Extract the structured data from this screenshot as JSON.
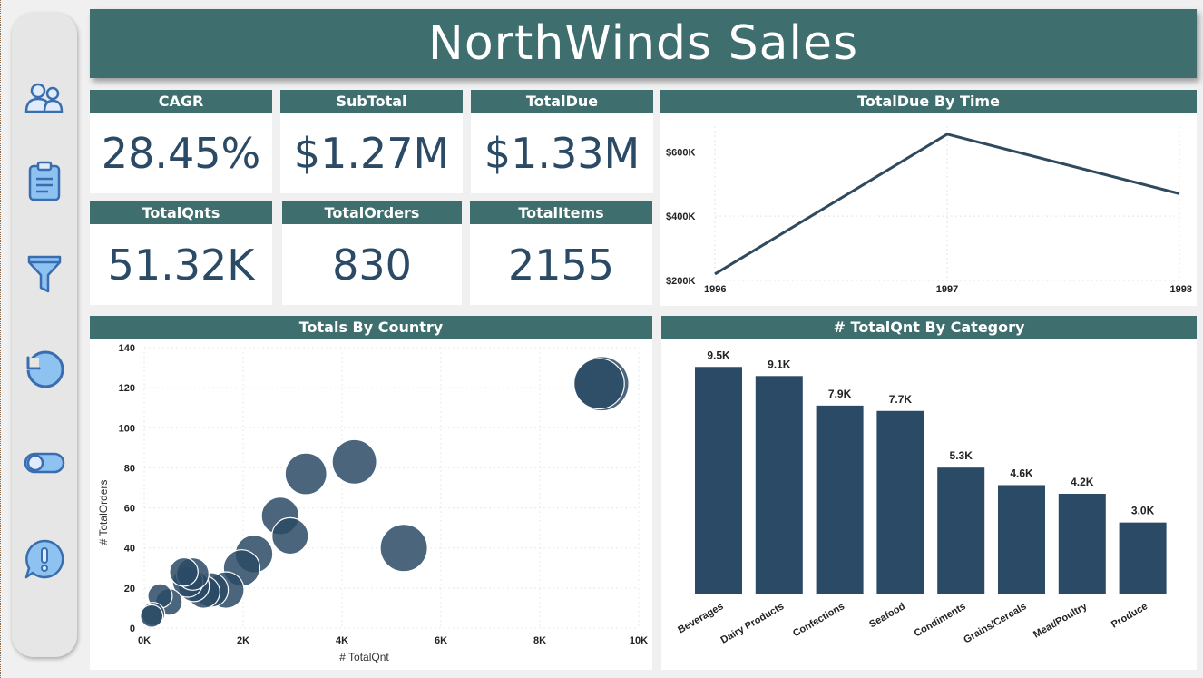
{
  "title": "NorthWinds Sales",
  "sidebar": {
    "icons": [
      "users-icon",
      "clipboard-icon",
      "filter-icon",
      "reset-icon",
      "toggle-icon",
      "feedback-icon"
    ]
  },
  "kpis": {
    "cagr": {
      "label": "CAGR",
      "value": "28.45%"
    },
    "subtotal": {
      "label": "SubTotal",
      "value": "$1.27M"
    },
    "totaldue": {
      "label": "TotalDue",
      "value": "$1.33M"
    },
    "totalqnts": {
      "label": "TotalQnts",
      "value": "51.32K"
    },
    "totalorders": {
      "label": "TotalOrders",
      "value": "830"
    },
    "totalitems": {
      "label": "TotalItems",
      "value": "2155"
    }
  },
  "colors": {
    "header": "#3e6e6e",
    "mark": "#2a4a65",
    "background": "#f0f0f0"
  },
  "chart_data": [
    {
      "type": "line",
      "title": "TotalDue By Time",
      "x": [
        "1996",
        "1997",
        "1998"
      ],
      "values": [
        220000,
        655000,
        470000
      ],
      "ylim": [
        200000,
        680000
      ],
      "yticks": [
        200000,
        400000,
        600000
      ],
      "ytick_labels": [
        "$200K",
        "$400K",
        "$600K"
      ],
      "grid": true
    },
    {
      "type": "scatter",
      "title": "Totals By Country",
      "xlabel": "# TotalQnt",
      "ylabel": "# TotalOrders",
      "xlim": [
        0,
        10000
      ],
      "ylim": [
        0,
        140
      ],
      "xticks": [
        0,
        2000,
        4000,
        6000,
        8000,
        10000
      ],
      "xtick_labels": [
        "0K",
        "2K",
        "4K",
        "6K",
        "8K",
        "10K"
      ],
      "yticks": [
        0,
        20,
        40,
        60,
        80,
        100,
        120,
        140
      ],
      "ytick_labels": [
        "0",
        "20",
        "40",
        "60",
        "80",
        "100",
        "120",
        "140"
      ],
      "points": [
        {
          "x": 9250,
          "y": 122,
          "size": 1.0
        },
        {
          "x": 9200,
          "y": 122,
          "size": 0.9
        },
        {
          "x": 4250,
          "y": 83,
          "size": 0.75
        },
        {
          "x": 3270,
          "y": 77,
          "size": 0.68
        },
        {
          "x": 5250,
          "y": 40,
          "size": 0.82
        },
        {
          "x": 2750,
          "y": 56,
          "size": 0.58
        },
        {
          "x": 2950,
          "y": 46,
          "size": 0.55
        },
        {
          "x": 2220,
          "y": 37,
          "size": 0.58
        },
        {
          "x": 1970,
          "y": 30,
          "size": 0.55
        },
        {
          "x": 1650,
          "y": 19,
          "size": 0.55
        },
        {
          "x": 1350,
          "y": 19,
          "size": 0.5
        },
        {
          "x": 1200,
          "y": 18,
          "size": 0.45
        },
        {
          "x": 1000,
          "y": 21,
          "size": 0.42
        },
        {
          "x": 880,
          "y": 23,
          "size": 0.4
        },
        {
          "x": 980,
          "y": 27,
          "size": 0.45
        },
        {
          "x": 800,
          "y": 28,
          "size": 0.35
        },
        {
          "x": 500,
          "y": 13,
          "size": 0.3
        },
        {
          "x": 320,
          "y": 16,
          "size": 0.25
        },
        {
          "x": 180,
          "y": 7,
          "size": 0.22
        },
        {
          "x": 150,
          "y": 6,
          "size": 0.2
        }
      ]
    },
    {
      "type": "bar",
      "title": "# TotalQnt By Category",
      "categories": [
        "Beverages",
        "Dairy Products",
        "Confections",
        "Seafood",
        "Condiments",
        "Grains/Cereals",
        "Meat/Poultry",
        "Produce"
      ],
      "values": [
        9532,
        9149,
        7906,
        7681,
        5298,
        4562,
        4199,
        2990
      ],
      "labels": [
        "9.5K",
        "9.1K",
        "7.9K",
        "7.7K",
        "5.3K",
        "4.6K",
        "4.2K",
        "3.0K"
      ],
      "ylim": [
        0,
        10000
      ]
    }
  ]
}
